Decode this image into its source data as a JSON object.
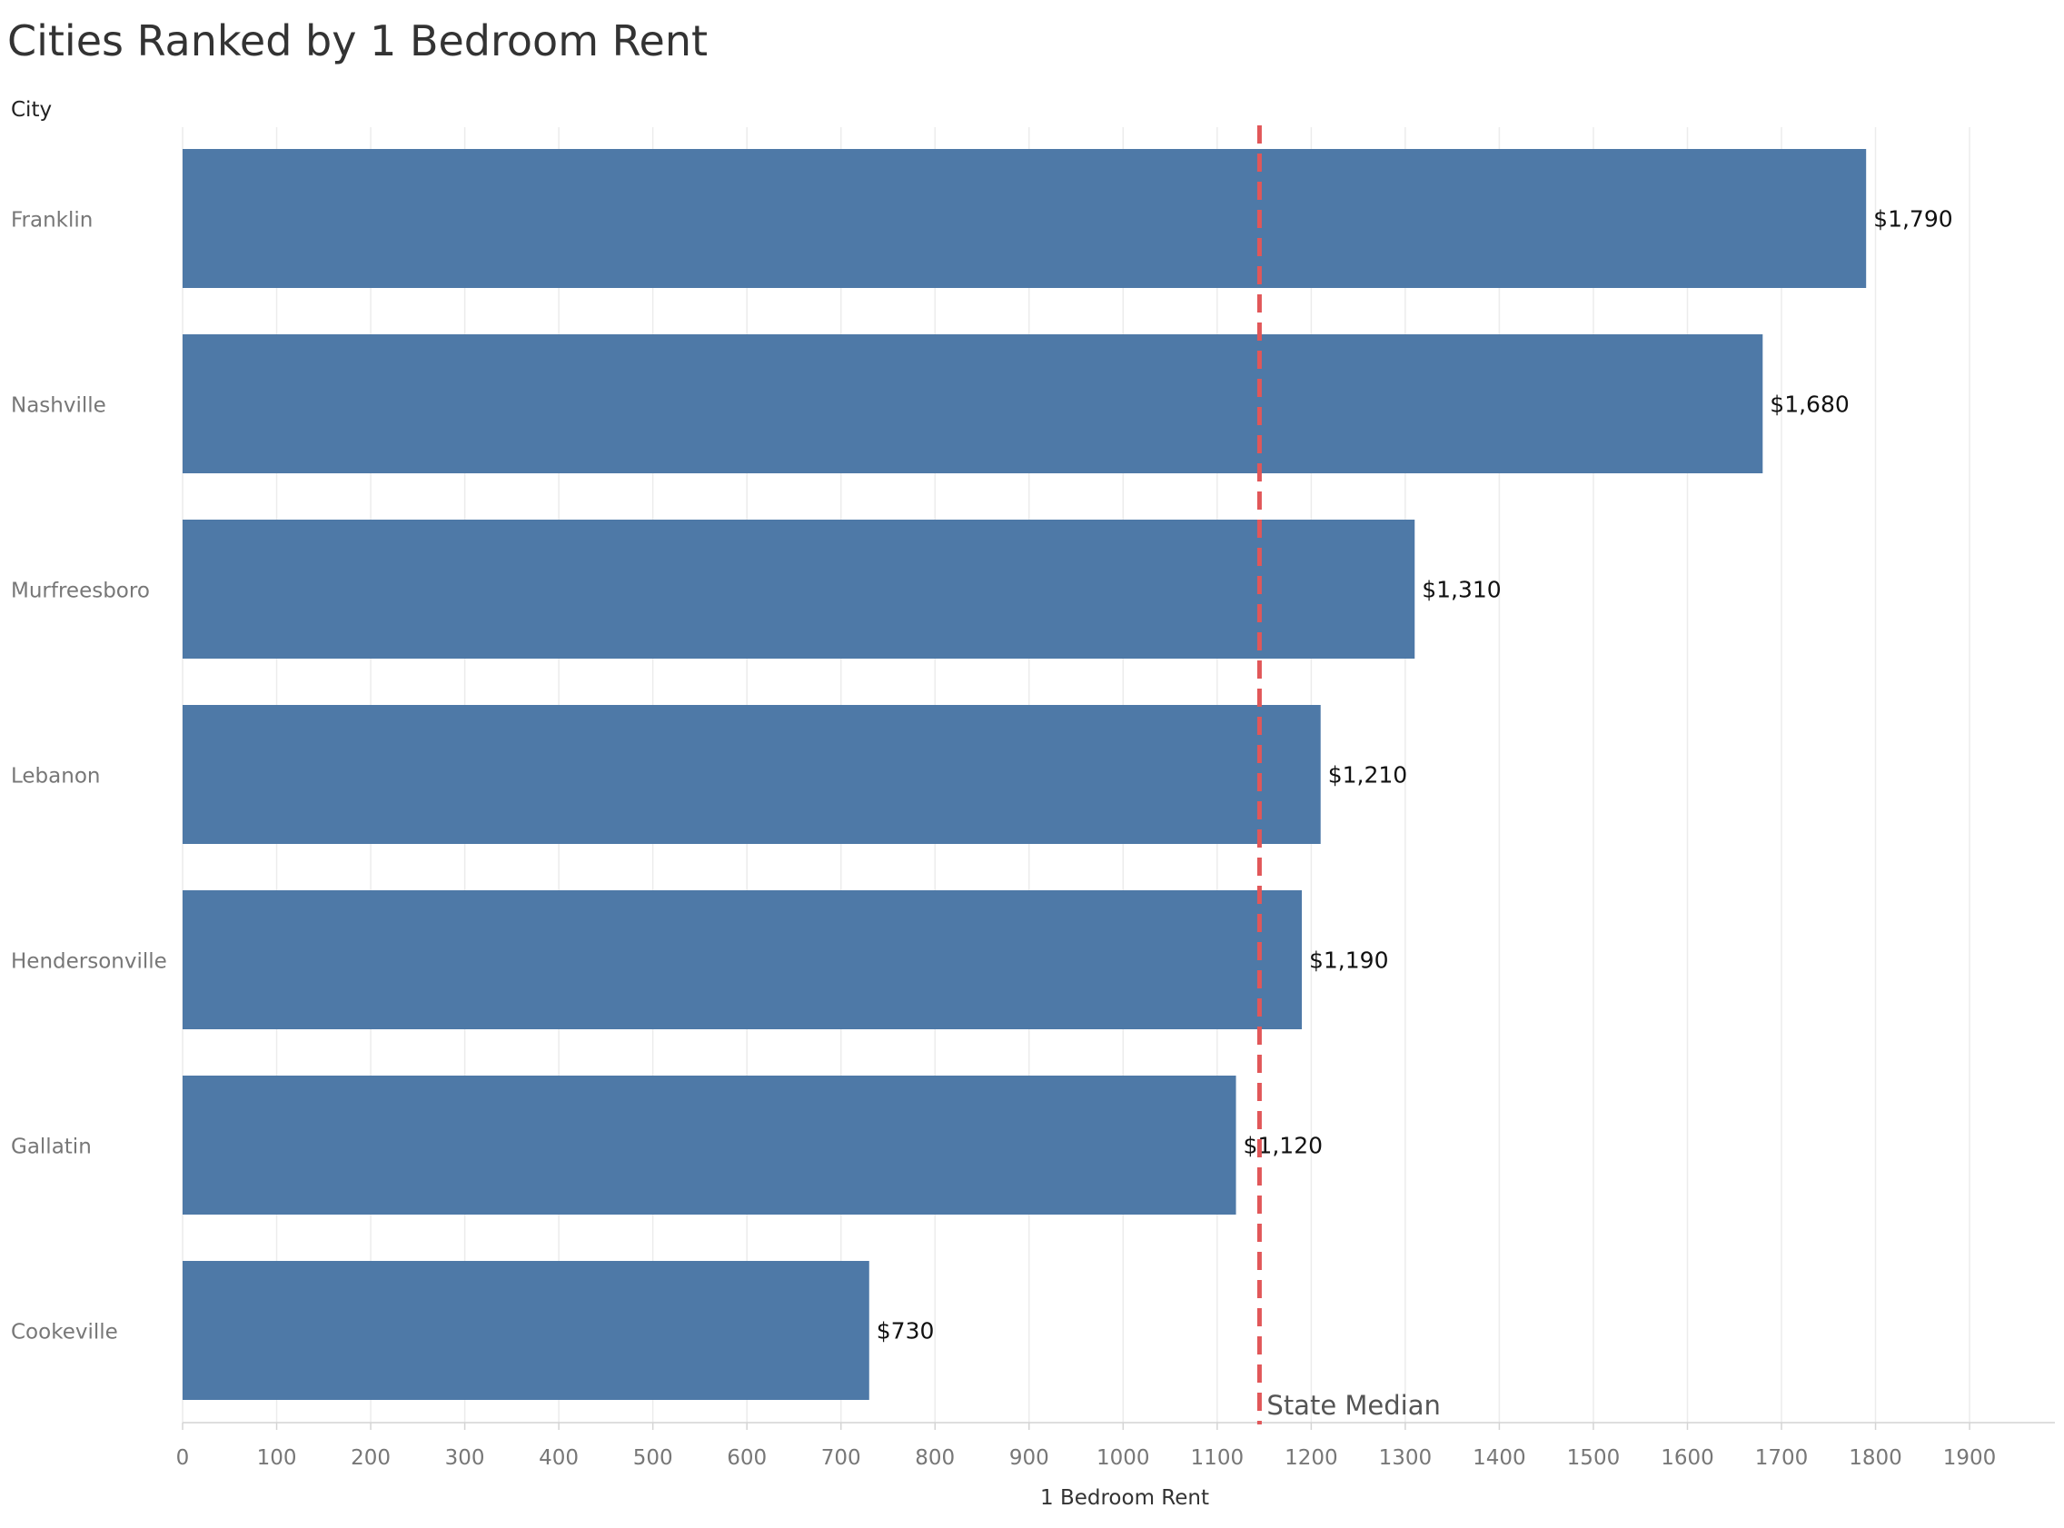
{
  "chart_data": {
    "type": "bar",
    "orientation": "horizontal",
    "title": "Cities Ranked by 1 Bedroom Rent",
    "row_header": "City",
    "xlabel": "1 Bedroom Rent",
    "categories": [
      "Franklin",
      "Nashville",
      "Murfreesboro",
      "Lebanon",
      "Hendersonville",
      "Gallatin",
      "Cookeville"
    ],
    "values": [
      1790,
      1680,
      1310,
      1210,
      1190,
      1120,
      730
    ],
    "value_labels": [
      "$1,790",
      "$1,680",
      "$1,310",
      "$1,210",
      "$1,190",
      "$1,120",
      "$730"
    ],
    "xlim": [
      0,
      1950
    ],
    "x_ticks": [
      0,
      100,
      200,
      300,
      400,
      500,
      600,
      700,
      800,
      900,
      1000,
      1100,
      1200,
      1300,
      1400,
      1500,
      1600,
      1700,
      1800,
      1900
    ],
    "grid": "vertical",
    "bar_color": "#4e79a7",
    "reference_line": {
      "label": "State Median",
      "value": 1145,
      "color": "#e15759",
      "style": "dashed"
    }
  }
}
